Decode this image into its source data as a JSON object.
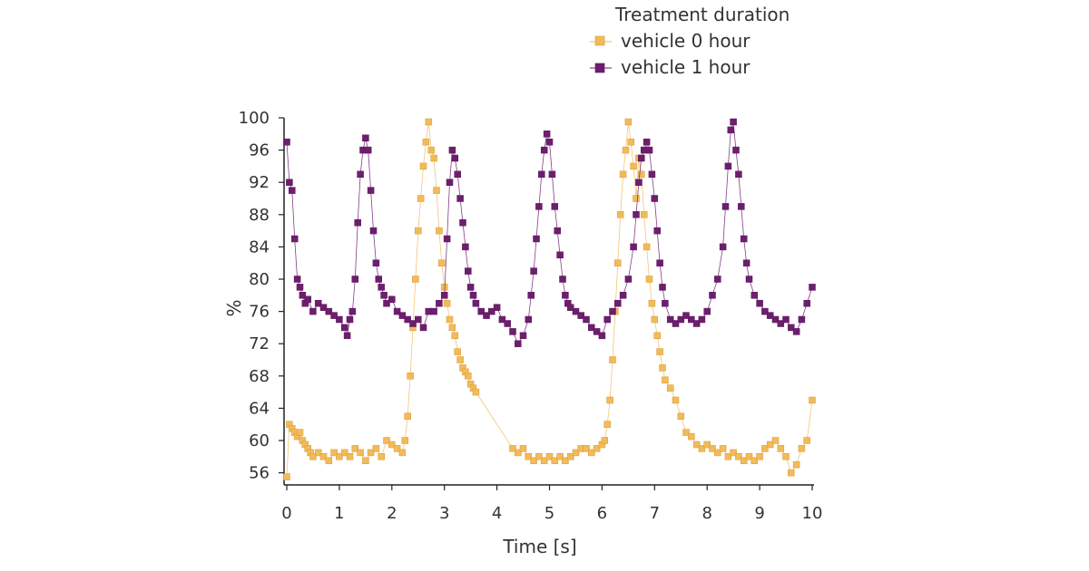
{
  "chart_data": {
    "type": "scatter",
    "title": "",
    "xlabel": "Time [s]",
    "ylabel": "%",
    "xlim": [
      0,
      10
    ],
    "ylim": [
      54.5,
      100
    ],
    "xticks": [
      0,
      1,
      2,
      3,
      4,
      5,
      6,
      7,
      8,
      9,
      10
    ],
    "yticks": [
      56,
      60,
      64,
      68,
      72,
      76,
      80,
      84,
      88,
      92,
      96,
      100
    ],
    "grid": false,
    "legend": {
      "title": "Treatment duration",
      "position": "top-right"
    },
    "series": [
      {
        "name": "vehicle 0 hour",
        "color": "#f2bb5a",
        "marker": "square",
        "x": [
          0.0,
          0.05,
          0.1,
          0.15,
          0.2,
          0.25,
          0.3,
          0.35,
          0.4,
          0.45,
          0.5,
          0.6,
          0.7,
          0.8,
          0.9,
          1.0,
          1.1,
          1.2,
          1.3,
          1.4,
          1.5,
          1.6,
          1.7,
          1.8,
          1.9,
          2.0,
          2.1,
          2.2,
          2.25,
          2.3,
          2.35,
          2.4,
          2.45,
          2.5,
          2.55,
          2.6,
          2.65,
          2.7,
          2.75,
          2.8,
          2.85,
          2.9,
          2.95,
          3.0,
          3.05,
          3.1,
          3.15,
          3.2,
          3.25,
          3.3,
          3.35,
          3.4,
          3.45,
          3.5,
          3.55,
          3.6,
          4.3,
          4.4,
          4.5,
          4.6,
          4.7,
          4.8,
          4.9,
          5.0,
          5.1,
          5.2,
          5.3,
          5.4,
          5.5,
          5.6,
          5.7,
          5.8,
          5.9,
          6.0,
          6.05,
          6.1,
          6.15,
          6.2,
          6.25,
          6.3,
          6.35,
          6.4,
          6.45,
          6.5,
          6.55,
          6.6,
          6.65,
          6.7,
          6.75,
          6.8,
          6.85,
          6.9,
          6.95,
          7.0,
          7.05,
          7.1,
          7.15,
          7.2,
          7.3,
          7.4,
          7.5,
          7.6,
          7.7,
          7.8,
          7.9,
          8.0,
          8.1,
          8.2,
          8.3,
          8.4,
          8.5,
          8.6,
          8.7,
          8.8,
          8.9,
          9.0,
          9.1,
          9.2,
          9.3,
          9.4,
          9.5,
          9.6,
          9.7,
          9.8,
          9.9,
          10.0
        ],
        "y": [
          55.5,
          62,
          61.5,
          61,
          60.5,
          61,
          60,
          59.5,
          59,
          58.5,
          58,
          58.5,
          58,
          57.5,
          58.5,
          58,
          58.5,
          58,
          59,
          58.5,
          57.5,
          58.5,
          59,
          58,
          60,
          59.5,
          59,
          58.5,
          60,
          63,
          68,
          74,
          80,
          86,
          90,
          94,
          97,
          99.5,
          96,
          95,
          91,
          86,
          82,
          79,
          77,
          75,
          74,
          73,
          71,
          70,
          69,
          68.5,
          68,
          67,
          66.5,
          66,
          59,
          58.5,
          59,
          58,
          57.5,
          58,
          57.5,
          58,
          57.5,
          58,
          57.5,
          58,
          58.5,
          59,
          59,
          58.5,
          59,
          59.5,
          60,
          62,
          65,
          70,
          76,
          82,
          88,
          93,
          96,
          99.5,
          97,
          94,
          90,
          95,
          93,
          88,
          84,
          80,
          77,
          75,
          73,
          71,
          69,
          67.5,
          66.5,
          65,
          63,
          61,
          60.5,
          59.5,
          59,
          59.5,
          59,
          58.5,
          59,
          58,
          58.5,
          58,
          57.5,
          58,
          57.5,
          58,
          59,
          59.5,
          60,
          59,
          58,
          56,
          57,
          59,
          60,
          65
        ]
      },
      {
        "name": "vehicle 1 hour",
        "color": "#6e1e6e",
        "marker": "square",
        "x": [
          0.0,
          0.05,
          0.1,
          0.15,
          0.2,
          0.25,
          0.3,
          0.35,
          0.4,
          0.5,
          0.6,
          0.7,
          0.8,
          0.9,
          1.0,
          1.1,
          1.15,
          1.2,
          1.25,
          1.3,
          1.35,
          1.4,
          1.45,
          1.5,
          1.55,
          1.6,
          1.65,
          1.7,
          1.75,
          1.8,
          1.85,
          1.9,
          2.0,
          2.1,
          2.2,
          2.3,
          2.4,
          2.5,
          2.6,
          2.7,
          2.8,
          2.9,
          3.0,
          3.05,
          3.1,
          3.15,
          3.2,
          3.25,
          3.3,
          3.35,
          3.4,
          3.45,
          3.5,
          3.55,
          3.6,
          3.7,
          3.8,
          3.9,
          4.0,
          4.1,
          4.2,
          4.3,
          4.4,
          4.5,
          4.6,
          4.65,
          4.7,
          4.75,
          4.8,
          4.85,
          4.9,
          4.95,
          5.0,
          5.05,
          5.1,
          5.15,
          5.2,
          5.25,
          5.3,
          5.35,
          5.4,
          5.5,
          5.6,
          5.7,
          5.8,
          5.9,
          6.0,
          6.1,
          6.2,
          6.3,
          6.4,
          6.5,
          6.6,
          6.65,
          6.7,
          6.75,
          6.8,
          6.85,
          6.9,
          6.95,
          7.0,
          7.05,
          7.1,
          7.15,
          7.2,
          7.3,
          7.4,
          7.5,
          7.6,
          7.7,
          7.8,
          7.9,
          8.0,
          8.1,
          8.2,
          8.3,
          8.35,
          8.4,
          8.45,
          8.5,
          8.55,
          8.6,
          8.65,
          8.7,
          8.75,
          8.8,
          8.9,
          9.0,
          9.1,
          9.2,
          9.3,
          9.4,
          9.5,
          9.6,
          9.7,
          9.8,
          9.9,
          10.0
        ],
        "y": [
          97,
          92,
          91,
          85,
          80,
          79,
          78,
          77,
          77.5,
          76,
          77,
          76.5,
          76,
          75.5,
          75,
          74,
          73,
          75,
          76,
          80,
          87,
          93,
          96,
          97.5,
          96,
          91,
          86,
          82,
          80,
          79,
          78,
          77,
          77.5,
          76,
          75.5,
          75,
          74.5,
          75,
          74,
          76,
          76,
          77,
          78,
          85,
          92,
          96,
          95,
          93,
          90,
          87,
          84,
          81,
          79,
          78,
          77,
          76,
          75.5,
          76,
          76.5,
          75,
          74.5,
          73.5,
          72,
          73,
          75,
          78,
          81,
          85,
          89,
          93,
          96,
          98,
          97,
          93,
          89,
          86,
          83,
          80,
          78,
          77,
          76.5,
          76,
          75.5,
          75,
          74,
          73.5,
          73,
          75,
          76,
          77,
          78,
          80,
          84,
          88,
          92,
          95,
          96,
          97,
          96,
          93,
          90,
          86,
          82,
          79,
          77,
          75,
          74.5,
          75,
          75.5,
          75,
          74.5,
          75,
          76,
          78,
          80,
          84,
          89,
          94,
          98.5,
          99.5,
          96,
          93,
          89,
          85,
          82,
          80,
          78,
          77,
          76,
          75.5,
          75,
          74.5,
          75,
          74,
          73.5,
          75,
          77,
          79
        ]
      }
    ]
  }
}
